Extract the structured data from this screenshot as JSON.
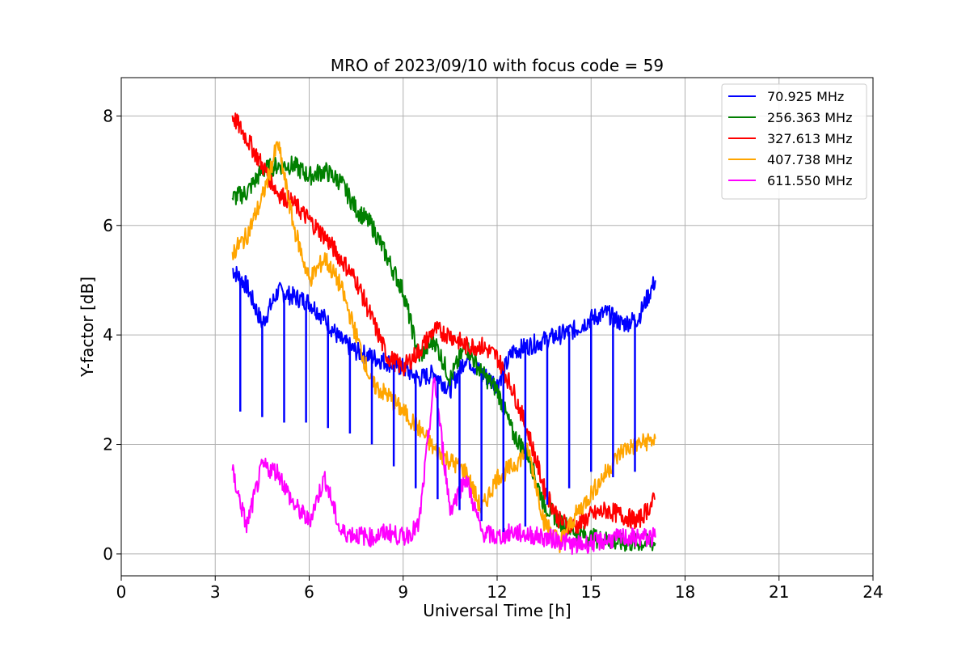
{
  "chart_data": {
    "type": "line",
    "title": "MRO of 2023/09/10 with focus code = 59",
    "xlabel": "Universal Time [h]",
    "ylabel": "Y-factor [dB]",
    "xlim": [
      0,
      24
    ],
    "ylim": [
      -0.4,
      8.7
    ],
    "xticks": [
      0,
      3,
      6,
      9,
      12,
      15,
      18,
      21,
      24
    ],
    "xtick_labels": [
      "0",
      "3",
      "6",
      "9",
      "12",
      "15",
      "18",
      "21",
      "24"
    ],
    "yticks": [
      0,
      2,
      4,
      6,
      8
    ],
    "ytick_labels": [
      "0",
      "2",
      "4",
      "6",
      "8"
    ],
    "grid": true,
    "legend_position": "top-right",
    "series": [
      {
        "name": " 70.925 MHz",
        "color": "#0000ff",
        "x": [
          3.55,
          4.0,
          4.5,
          5.0,
          5.5,
          6.0,
          6.5,
          7.0,
          7.5,
          8.0,
          8.5,
          9.0,
          9.5,
          10.0,
          10.5,
          11.0,
          11.5,
          12.0,
          12.5,
          13.0,
          13.5,
          14.0,
          14.5,
          15.0,
          15.5,
          16.0,
          16.5,
          17.05
        ],
        "y": [
          5.2,
          4.9,
          4.2,
          4.8,
          4.7,
          4.6,
          4.3,
          3.9,
          3.7,
          3.6,
          3.5,
          3.4,
          3.2,
          3.3,
          3.0,
          3.6,
          3.3,
          3.1,
          3.7,
          3.8,
          3.9,
          4.0,
          4.1,
          4.3,
          4.4,
          4.2,
          4.3,
          5.0
        ]
      },
      {
        "name": "256.363 MHz",
        "color": "#008000",
        "x": [
          3.55,
          4.0,
          4.5,
          5.0,
          5.5,
          6.0,
          6.5,
          7.0,
          7.5,
          8.0,
          8.5,
          9.0,
          9.5,
          10.0,
          10.5,
          11.0,
          11.5,
          12.0,
          12.5,
          13.0,
          13.5,
          14.0,
          14.5,
          15.0,
          15.5,
          16.0,
          16.5,
          17.05
        ],
        "y": [
          6.5,
          6.6,
          7.0,
          7.1,
          7.1,
          6.9,
          7.0,
          6.8,
          6.3,
          6.0,
          5.4,
          4.8,
          3.6,
          3.9,
          3.2,
          3.8,
          3.3,
          3.0,
          2.2,
          1.8,
          0.9,
          0.6,
          0.4,
          0.3,
          0.25,
          0.2,
          0.2,
          0.2
        ]
      },
      {
        "name": "327.613 MHz",
        "color": "#ff0000",
        "x": [
          3.55,
          4.0,
          4.5,
          5.0,
          5.5,
          6.0,
          6.5,
          7.0,
          7.5,
          8.0,
          8.5,
          9.0,
          9.5,
          10.0,
          10.5,
          11.0,
          11.5,
          12.0,
          12.5,
          13.0,
          13.5,
          14.0,
          14.5,
          15.0,
          15.5,
          16.0,
          16.5,
          17.05
        ],
        "y": [
          8.0,
          7.6,
          7.1,
          6.6,
          6.4,
          6.1,
          5.8,
          5.4,
          5.0,
          4.3,
          3.6,
          3.4,
          3.7,
          4.1,
          4.0,
          3.8,
          3.8,
          3.6,
          3.0,
          2.2,
          1.2,
          0.6,
          0.5,
          0.7,
          0.8,
          0.7,
          0.6,
          1.0
        ]
      },
      {
        "name": "407.738 MHz",
        "color": "#ffa500",
        "x": [
          3.55,
          4.0,
          4.5,
          5.0,
          5.5,
          6.0,
          6.5,
          7.0,
          7.5,
          8.0,
          8.5,
          9.0,
          9.5,
          10.0,
          10.5,
          11.0,
          11.5,
          12.0,
          12.5,
          13.0,
          13.5,
          14.0,
          14.5,
          15.0,
          15.5,
          16.0,
          16.5,
          17.05
        ],
        "y": [
          5.5,
          5.8,
          6.5,
          7.5,
          6.0,
          5.0,
          5.4,
          4.9,
          4.0,
          3.1,
          2.9,
          2.6,
          2.3,
          1.9,
          1.7,
          1.5,
          0.8,
          1.4,
          1.6,
          1.9,
          0.6,
          0.2,
          0.7,
          1.1,
          1.5,
          1.9,
          2.0,
          2.1
        ]
      },
      {
        "name": "611.550 MHz",
        "color": "#ff00ff",
        "x": [
          3.55,
          4.0,
          4.5,
          5.0,
          5.5,
          6.0,
          6.5,
          7.0,
          7.5,
          8.0,
          8.5,
          9.0,
          9.5,
          10.0,
          10.5,
          11.0,
          11.5,
          12.0,
          12.5,
          13.0,
          13.5,
          14.0,
          14.5,
          15.0,
          15.5,
          16.0,
          16.5,
          17.05
        ],
        "y": [
          1.5,
          0.5,
          1.6,
          1.5,
          0.9,
          0.6,
          1.4,
          0.4,
          0.35,
          0.3,
          0.4,
          0.3,
          0.5,
          3.2,
          0.8,
          1.4,
          0.4,
          0.3,
          0.4,
          0.35,
          0.3,
          0.25,
          0.15,
          0.2,
          0.25,
          0.3,
          0.3,
          0.3
        ]
      }
    ],
    "periodic_dips": {
      "series": " 70.925 MHz",
      "x": [
        3.8,
        4.5,
        5.2,
        5.9,
        6.6,
        7.3,
        8.0,
        8.7,
        9.4,
        10.1,
        10.8,
        11.5,
        12.2,
        12.9,
        13.6,
        14.3,
        15.0,
        15.7,
        16.4
      ],
      "y": [
        2.6,
        2.5,
        2.4,
        2.4,
        2.3,
        2.2,
        2.0,
        1.6,
        1.2,
        1.0,
        0.8,
        0.6,
        0.4,
        0.5,
        0.9,
        1.2,
        1.5,
        1.4,
        1.5
      ]
    }
  }
}
